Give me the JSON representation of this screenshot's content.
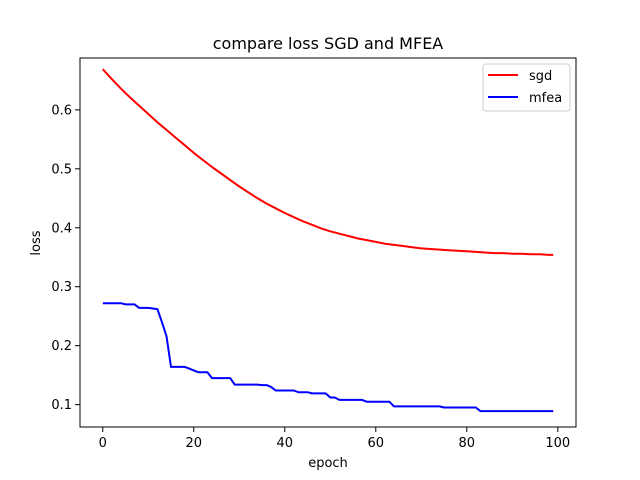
{
  "chart_data": {
    "type": "line",
    "title": "compare loss SGD and MFEA",
    "xlabel": "epoch",
    "ylabel": "loss",
    "xlim": [
      -5,
      104
    ],
    "ylim": [
      0.062,
      0.688
    ],
    "xticks": [
      0,
      20,
      40,
      60,
      80,
      100
    ],
    "yticks": [
      0.1,
      0.2,
      0.3,
      0.4,
      0.5,
      0.6
    ],
    "xtick_labels": [
      "0",
      "20",
      "40",
      "60",
      "80",
      "100"
    ],
    "ytick_labels": [
      "0.1",
      "0.2",
      "0.3",
      "0.4",
      "0.5",
      "0.6"
    ],
    "grid": false,
    "legend_position": "top-right",
    "series": [
      {
        "name": "sgd",
        "color": "#ff0000",
        "x": [
          0,
          2,
          4,
          6,
          8,
          10,
          12,
          14,
          16,
          18,
          20,
          22,
          24,
          26,
          28,
          30,
          32,
          34,
          36,
          38,
          40,
          42,
          44,
          46,
          48,
          50,
          52,
          54,
          56,
          58,
          60,
          62,
          64,
          66,
          68,
          70,
          72,
          74,
          76,
          78,
          80,
          82,
          84,
          86,
          88,
          90,
          92,
          94,
          96,
          98,
          99
        ],
        "y": [
          0.669,
          0.652,
          0.636,
          0.621,
          0.607,
          0.593,
          0.579,
          0.566,
          0.553,
          0.54,
          0.527,
          0.515,
          0.503,
          0.492,
          0.481,
          0.47,
          0.46,
          0.45,
          0.441,
          0.433,
          0.425,
          0.418,
          0.411,
          0.405,
          0.399,
          0.394,
          0.39,
          0.386,
          0.382,
          0.379,
          0.376,
          0.373,
          0.371,
          0.369,
          0.367,
          0.365,
          0.364,
          0.363,
          0.362,
          0.361,
          0.36,
          0.359,
          0.358,
          0.357,
          0.357,
          0.356,
          0.356,
          0.355,
          0.355,
          0.354,
          0.354
        ]
      },
      {
        "name": "mfea",
        "color": "#0000ff",
        "x": [
          0,
          4,
          5,
          7,
          8,
          10,
          11,
          12,
          13,
          14,
          15,
          18,
          19,
          20,
          21,
          23,
          24,
          27,
          28,
          29,
          34,
          35,
          36,
          37,
          38,
          42,
          43,
          45,
          46,
          48,
          49,
          50,
          51,
          52,
          57,
          58,
          63,
          64,
          74,
          75,
          81,
          82,
          83,
          84,
          99
        ],
        "y": [
          0.272,
          0.272,
          0.27,
          0.27,
          0.264,
          0.264,
          0.263,
          0.262,
          0.24,
          0.216,
          0.164,
          0.164,
          0.161,
          0.158,
          0.155,
          0.155,
          0.145,
          0.145,
          0.145,
          0.134,
          0.134,
          0.133,
          0.133,
          0.13,
          0.124,
          0.124,
          0.121,
          0.121,
          0.119,
          0.119,
          0.119,
          0.112,
          0.112,
          0.108,
          0.108,
          0.105,
          0.105,
          0.097,
          0.097,
          0.095,
          0.095,
          0.095,
          0.089,
          0.089,
          0.089
        ]
      }
    ]
  }
}
